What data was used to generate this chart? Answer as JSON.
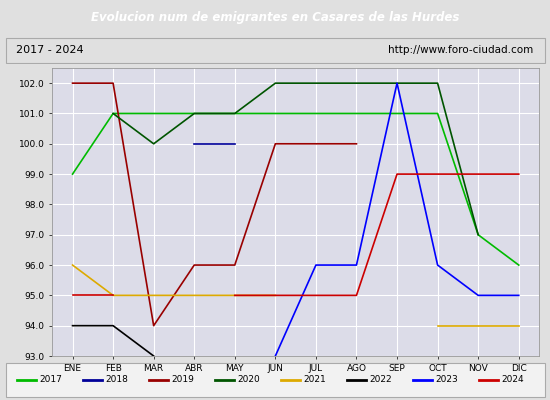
{
  "title": "Evolucion num de emigrantes en Casares de las Hurdes",
  "subtitle_left": "2017 - 2024",
  "subtitle_right": "http://www.foro-ciudad.com",
  "months": [
    "ENE",
    "FEB",
    "MAR",
    "ABR",
    "MAY",
    "JUN",
    "JUL",
    "AGO",
    "SEP",
    "OCT",
    "NOV",
    "DIC"
  ],
  "month_indices": [
    1,
    2,
    3,
    4,
    5,
    6,
    7,
    8,
    9,
    10,
    11,
    12
  ],
  "series": {
    "2017": {
      "color": "#00bb00",
      "data": [
        99,
        101,
        101,
        101,
        101,
        101,
        101,
        101,
        101,
        101,
        97,
        96
      ]
    },
    "2018": {
      "color": "#000099",
      "data": [
        null,
        null,
        null,
        100,
        100,
        null,
        null,
        null,
        null,
        null,
        null,
        null
      ]
    },
    "2019": {
      "color": "#990000",
      "data": [
        102,
        102,
        94,
        96,
        96,
        100,
        100,
        100,
        null,
        null,
        null,
        null
      ]
    },
    "2020": {
      "color": "#005500",
      "data": [
        null,
        101,
        100,
        101,
        101,
        102,
        102,
        102,
        102,
        102,
        97,
        null
      ]
    },
    "2021": {
      "color": "#ddaa00",
      "data": [
        96,
        95,
        95,
        95,
        95,
        95,
        null,
        null,
        null,
        94,
        94,
        94
      ]
    },
    "2022": {
      "color": "#000000",
      "data": [
        94,
        94,
        93,
        null,
        null,
        null,
        null,
        null,
        null,
        null,
        null,
        null
      ]
    },
    "2023": {
      "color": "#0000ff",
      "data": [
        null,
        null,
        null,
        null,
        null,
        93,
        96,
        96,
        102,
        96,
        95,
        95
      ]
    },
    "2024": {
      "color": "#cc0000",
      "data": [
        95,
        95,
        null,
        null,
        95,
        95,
        95,
        95,
        99,
        99,
        99,
        99
      ]
    }
  },
  "ylim": [
    93.0,
    102.5
  ],
  "yticks": [
    93.0,
    94.0,
    95.0,
    96.0,
    97.0,
    98.0,
    99.0,
    100.0,
    101.0,
    102.0
  ],
  "bg_color": "#e0e0e0",
  "plot_bg_color": "#dcdce8",
  "title_bg_color": "#4472c4",
  "title_color": "#ffffff",
  "grid_color": "#ffffff",
  "linewidth": 1.2,
  "legend_years": [
    "2017",
    "2018",
    "2019",
    "2020",
    "2021",
    "2022",
    "2023",
    "2024"
  ],
  "legend_colors": [
    "#00bb00",
    "#000099",
    "#990000",
    "#005500",
    "#ddaa00",
    "#000000",
    "#0000ff",
    "#cc0000"
  ]
}
